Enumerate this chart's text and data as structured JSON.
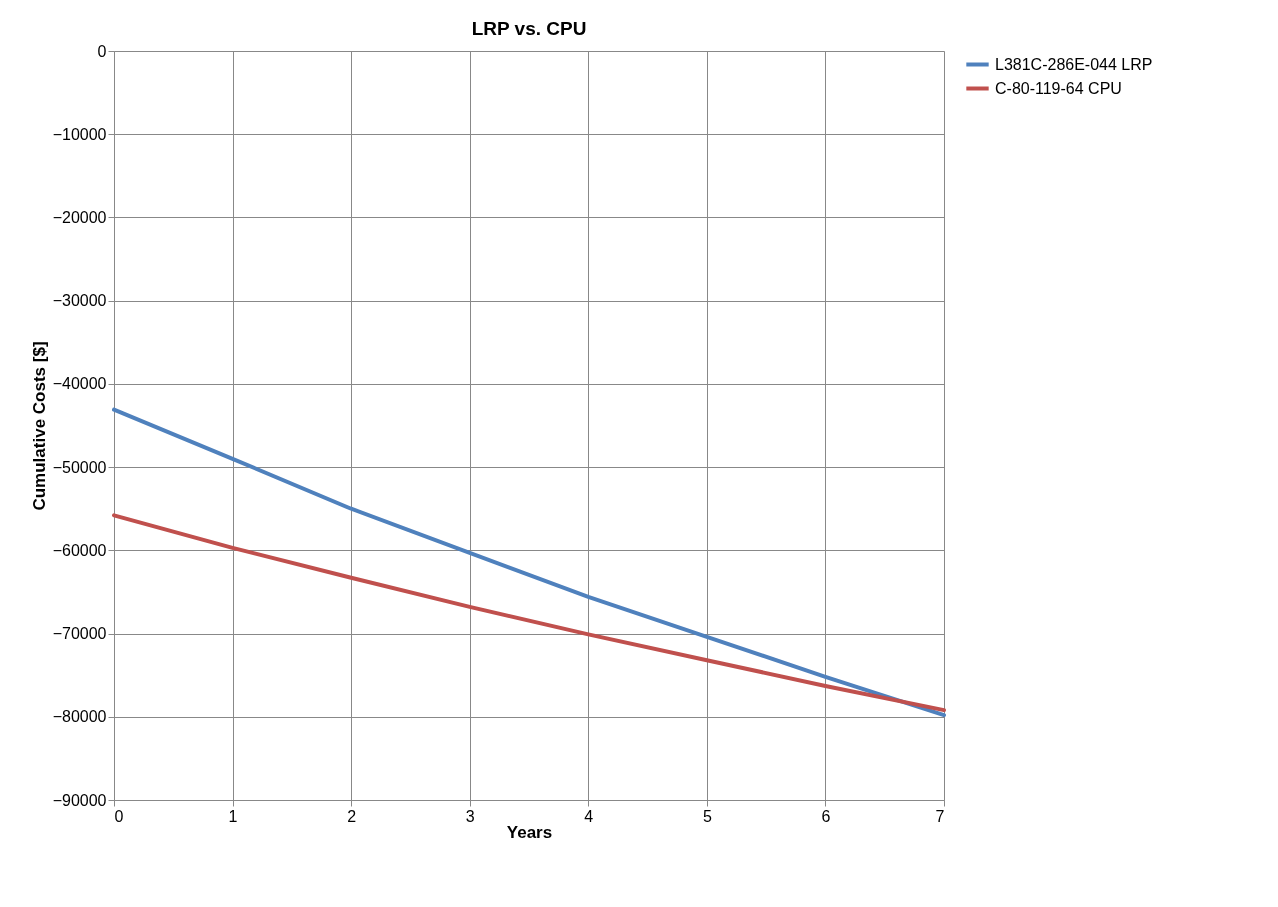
{
  "chart_data": {
    "type": "line",
    "title": "LRP vs. CPU",
    "xlabel": "Years",
    "ylabel": "Cumulative Costs [$]",
    "x": [
      0,
      1,
      2,
      3,
      4,
      5,
      6,
      7
    ],
    "series": [
      {
        "name": "L381C-286E-044 LRP",
        "color": "#4f81bd",
        "values": [
          -43100,
          -49000,
          -55000,
          -60300,
          -65600,
          -70400,
          -75200,
          -79800
        ]
      },
      {
        "name": "C-80-119-64 CPU",
        "color": "#c0504d",
        "values": [
          -55800,
          -59700,
          -63300,
          -66800,
          -70100,
          -73200,
          -76300,
          -79200
        ]
      }
    ],
    "xlim": [
      0,
      7
    ],
    "xticks": [
      0,
      1,
      2,
      3,
      4,
      5,
      6,
      7
    ],
    "ylim": [
      -90000,
      0
    ],
    "yticks": [
      -90000,
      -80000,
      -70000,
      -60000,
      -50000,
      -40000,
      -30000,
      -20000,
      -10000,
      0
    ],
    "grid": true,
    "legend": "right",
    "marker": "none",
    "line_style": "solid"
  }
}
